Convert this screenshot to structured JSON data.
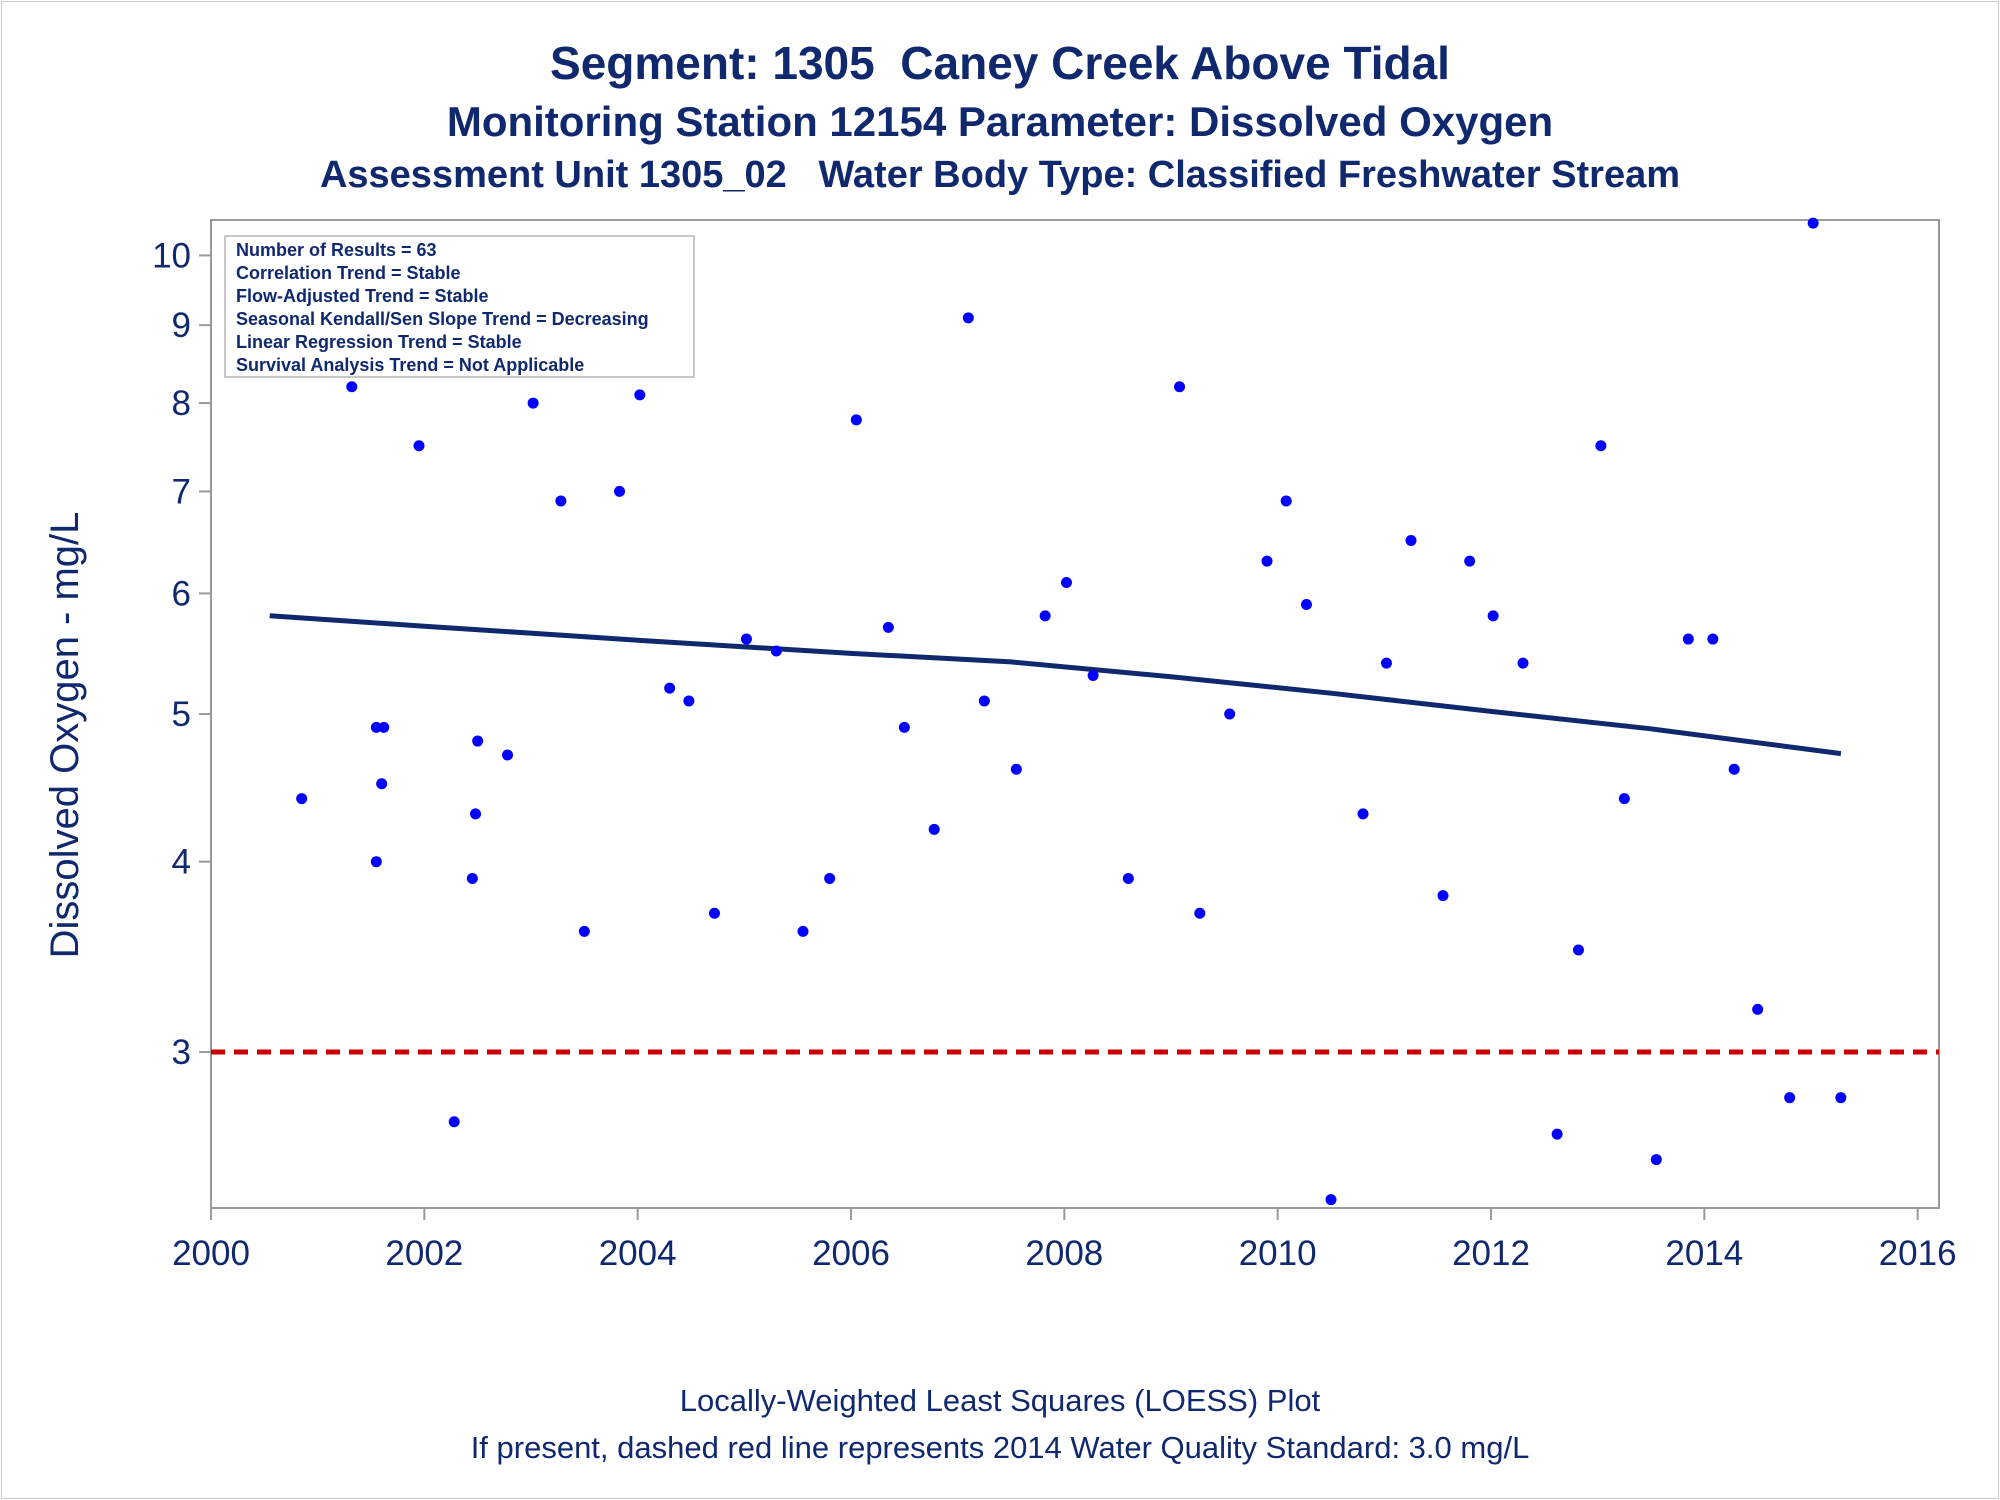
{
  "titles": {
    "line1": "Segment: 1305  Caney Creek Above Tidal",
    "line2": "Monitoring Station 12154 Parameter: Dissolved Oxygen",
    "line3": "Assessment Unit 1305_02   Water Body Type: Classified Freshwater Stream"
  },
  "footer": {
    "line1": "Locally-Weighted Least Squares (LOESS) Plot",
    "line2": "If present, dashed red line represents 2014 Water Quality Standard: 3.0 mg/L"
  },
  "stats_box": [
    "Number of Results = 63",
    "Correlation Trend = Stable",
    "Flow-Adjusted Trend = Stable",
    "Seasonal Kendall/Sen Slope Trend = Decreasing",
    "Linear Regression Trend = Stable",
    "Survival Analysis Trend = Not Applicable"
  ],
  "colors": {
    "text": "#10286e",
    "points": "#0000ff",
    "loess": "#10286e",
    "standard_line": "#cc0000",
    "axis": "#9a9a9a"
  },
  "chart_data": {
    "type": "scatter",
    "title": "Segment: 1305  Caney Creek Above Tidal",
    "ylabel": "Dissolved Oxygen - mg/L",
    "xlabel": "",
    "y_scale": "log",
    "xlim": [
      2000,
      2016.2
    ],
    "ylim": [
      2.37,
      10.55
    ],
    "x_ticks": [
      2000,
      2002,
      2004,
      2006,
      2008,
      2010,
      2012,
      2014,
      2016
    ],
    "x_tick_labels": [
      "2000",
      "2002",
      "2004",
      "2006",
      "2008",
      "2010",
      "2012",
      "2014",
      "2016"
    ],
    "y_ticks": [
      3,
      4,
      5,
      6,
      7,
      8,
      9,
      10
    ],
    "y_tick_labels": [
      "3",
      "4",
      "5",
      "6",
      "7",
      "8",
      "9",
      "10"
    ],
    "grid": false,
    "points": [
      {
        "x": 2000.55,
        "y": 8.6
      },
      {
        "x": 2000.85,
        "y": 4.4
      },
      {
        "x": 2001.05,
        "y": 9.05
      },
      {
        "x": 2001.32,
        "y": 8.2
      },
      {
        "x": 2001.55,
        "y": 4.9
      },
      {
        "x": 2001.62,
        "y": 4.9
      },
      {
        "x": 2001.6,
        "y": 4.5
      },
      {
        "x": 2001.55,
        "y": 4.0
      },
      {
        "x": 2001.95,
        "y": 7.5
      },
      {
        "x": 2002.28,
        "y": 2.7
      },
      {
        "x": 2002.45,
        "y": 3.9
      },
      {
        "x": 2002.48,
        "y": 4.3
      },
      {
        "x": 2002.5,
        "y": 4.8
      },
      {
        "x": 2002.78,
        "y": 4.7
      },
      {
        "x": 2003.02,
        "y": 8.0
      },
      {
        "x": 2003.28,
        "y": 6.9
      },
      {
        "x": 2003.5,
        "y": 3.6
      },
      {
        "x": 2003.83,
        "y": 7.0
      },
      {
        "x": 2004.02,
        "y": 8.1
      },
      {
        "x": 2004.3,
        "y": 5.2
      },
      {
        "x": 2004.48,
        "y": 5.1
      },
      {
        "x": 2004.72,
        "y": 3.7
      },
      {
        "x": 2005.02,
        "y": 5.6
      },
      {
        "x": 2005.3,
        "y": 5.5
      },
      {
        "x": 2005.55,
        "y": 3.6
      },
      {
        "x": 2005.8,
        "y": 3.9
      },
      {
        "x": 2006.05,
        "y": 7.8
      },
      {
        "x": 2006.35,
        "y": 5.7
      },
      {
        "x": 2006.5,
        "y": 4.9
      },
      {
        "x": 2006.78,
        "y": 4.2
      },
      {
        "x": 2007.1,
        "y": 9.1
      },
      {
        "x": 2007.25,
        "y": 5.1
      },
      {
        "x": 2007.55,
        "y": 4.6
      },
      {
        "x": 2007.82,
        "y": 5.8
      },
      {
        "x": 2008.02,
        "y": 6.1
      },
      {
        "x": 2008.27,
        "y": 5.3
      },
      {
        "x": 2008.6,
        "y": 3.9
      },
      {
        "x": 2009.08,
        "y": 8.2
      },
      {
        "x": 2009.27,
        "y": 3.7
      },
      {
        "x": 2009.55,
        "y": 5.0
      },
      {
        "x": 2009.9,
        "y": 6.3
      },
      {
        "x": 2010.08,
        "y": 6.9
      },
      {
        "x": 2010.27,
        "y": 5.9
      },
      {
        "x": 2010.5,
        "y": 2.4
      },
      {
        "x": 2010.8,
        "y": 4.3
      },
      {
        "x": 2011.02,
        "y": 5.4
      },
      {
        "x": 2011.25,
        "y": 6.5
      },
      {
        "x": 2011.55,
        "y": 3.8
      },
      {
        "x": 2011.8,
        "y": 6.3
      },
      {
        "x": 2012.02,
        "y": 5.8
      },
      {
        "x": 2012.3,
        "y": 5.4
      },
      {
        "x": 2012.62,
        "y": 2.65
      },
      {
        "x": 2012.82,
        "y": 3.5
      },
      {
        "x": 2013.03,
        "y": 7.5
      },
      {
        "x": 2013.25,
        "y": 4.4
      },
      {
        "x": 2013.55,
        "y": 2.55
      },
      {
        "x": 2013.85,
        "y": 5.6
      },
      {
        "x": 2014.08,
        "y": 5.6
      },
      {
        "x": 2014.28,
        "y": 4.6
      },
      {
        "x": 2014.5,
        "y": 3.2
      },
      {
        "x": 2014.8,
        "y": 2.8
      },
      {
        "x": 2015.02,
        "y": 10.5
      },
      {
        "x": 2015.28,
        "y": 2.8
      }
    ],
    "loess_line": [
      {
        "x": 2000.55,
        "y": 5.8
      },
      {
        "x": 2002.0,
        "y": 5.71
      },
      {
        "x": 2004.0,
        "y": 5.59
      },
      {
        "x": 2006.0,
        "y": 5.48
      },
      {
        "x": 2007.5,
        "y": 5.41
      },
      {
        "x": 2009.0,
        "y": 5.29
      },
      {
        "x": 2010.5,
        "y": 5.16
      },
      {
        "x": 2012.0,
        "y": 5.02
      },
      {
        "x": 2013.5,
        "y": 4.89
      },
      {
        "x": 2015.28,
        "y": 4.71
      }
    ],
    "reference_line": {
      "y": 3.0,
      "style": "dashed"
    }
  }
}
